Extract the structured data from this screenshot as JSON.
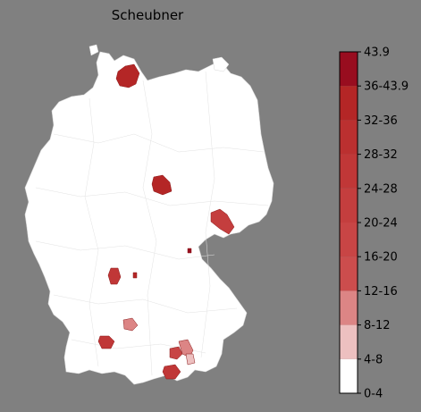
{
  "title": "Scheubner",
  "legend": {
    "bins": [
      {
        "label": "0-4",
        "color": "#ffffff"
      },
      {
        "label": "4-8",
        "color": "#edc0c0"
      },
      {
        "label": "8-12",
        "color": "#dc8585"
      },
      {
        "label": "12-16",
        "color": "#cc4d4d"
      },
      {
        "label": "16-20",
        "color": "#c84545"
      },
      {
        "label": "20-24",
        "color": "#c43e3e"
      },
      {
        "label": "24-28",
        "color": "#c03737"
      },
      {
        "label": "28-32",
        "color": "#bb3030"
      },
      {
        "label": "32-36",
        "color": "#b42626"
      },
      {
        "label": "36-43.9",
        "color": "#a81a1a"
      },
      {
        "label": "43.9",
        "color": "#980d1f"
      }
    ]
  },
  "regions": [
    {
      "id": "schleswig-north",
      "color": "#b42626"
    },
    {
      "id": "thuringia-central",
      "color": "#b42626"
    },
    {
      "id": "saxony-east",
      "color": "#c43e3e"
    },
    {
      "id": "saxony-border-dot",
      "color": "#980d1f"
    },
    {
      "id": "palatinate",
      "color": "#c03737"
    },
    {
      "id": "palatinate-small",
      "color": "#b42626"
    },
    {
      "id": "swabia-west",
      "color": "#c03737"
    },
    {
      "id": "swabia-central",
      "color": "#dc8585"
    },
    {
      "id": "bavaria-south-west",
      "color": "#c03737"
    },
    {
      "id": "bavaria-south-east",
      "color": "#c84545"
    },
    {
      "id": "bavaria-south-east-light",
      "color": "#dc8585"
    },
    {
      "id": "bavaria-south-east-lighter",
      "color": "#edc0c0"
    }
  ]
}
